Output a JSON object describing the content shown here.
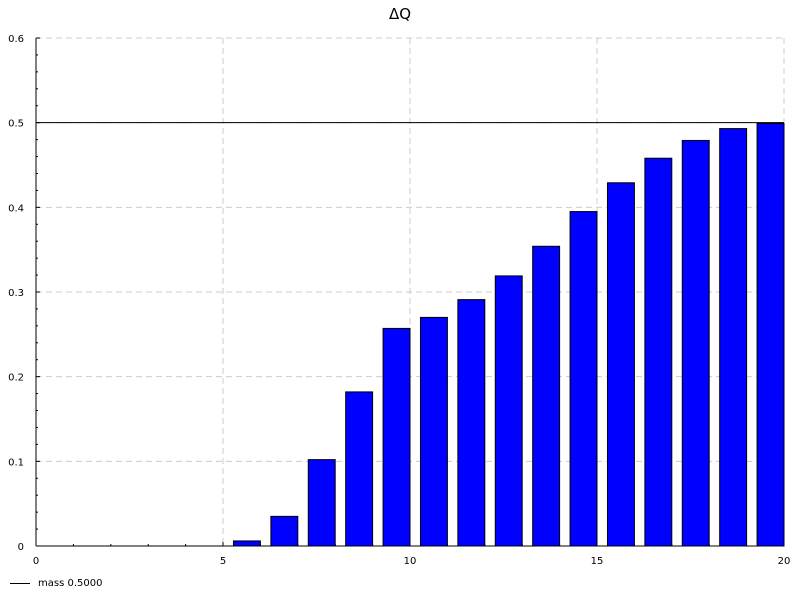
{
  "chart_data": {
    "type": "bar",
    "title": "ΔQ",
    "xlabel": "",
    "ylabel": "",
    "xlim": [
      0,
      20
    ],
    "ylim": [
      0,
      0.6
    ],
    "x_ticks": [
      0,
      5,
      10,
      15,
      20
    ],
    "y_ticks": [
      0,
      0.1,
      0.2,
      0.3,
      0.4,
      0.5,
      0.6
    ],
    "grid": true,
    "bar_color": "#0000ff",
    "x": [
      6,
      7,
      8,
      9,
      10,
      11,
      12,
      13,
      14,
      15,
      16,
      17,
      18,
      19,
      20
    ],
    "values": [
      0.006,
      0.035,
      0.102,
      0.182,
      0.257,
      0.27,
      0.291,
      0.319,
      0.354,
      0.395,
      0.429,
      0.458,
      0.479,
      0.493,
      0.499
    ],
    "reference_line": {
      "value": 0.5,
      "label": "mass 0.5000",
      "color": "#000000"
    },
    "legend": {
      "position": "bottom-left",
      "entries": [
        "mass 0.5000"
      ]
    }
  }
}
